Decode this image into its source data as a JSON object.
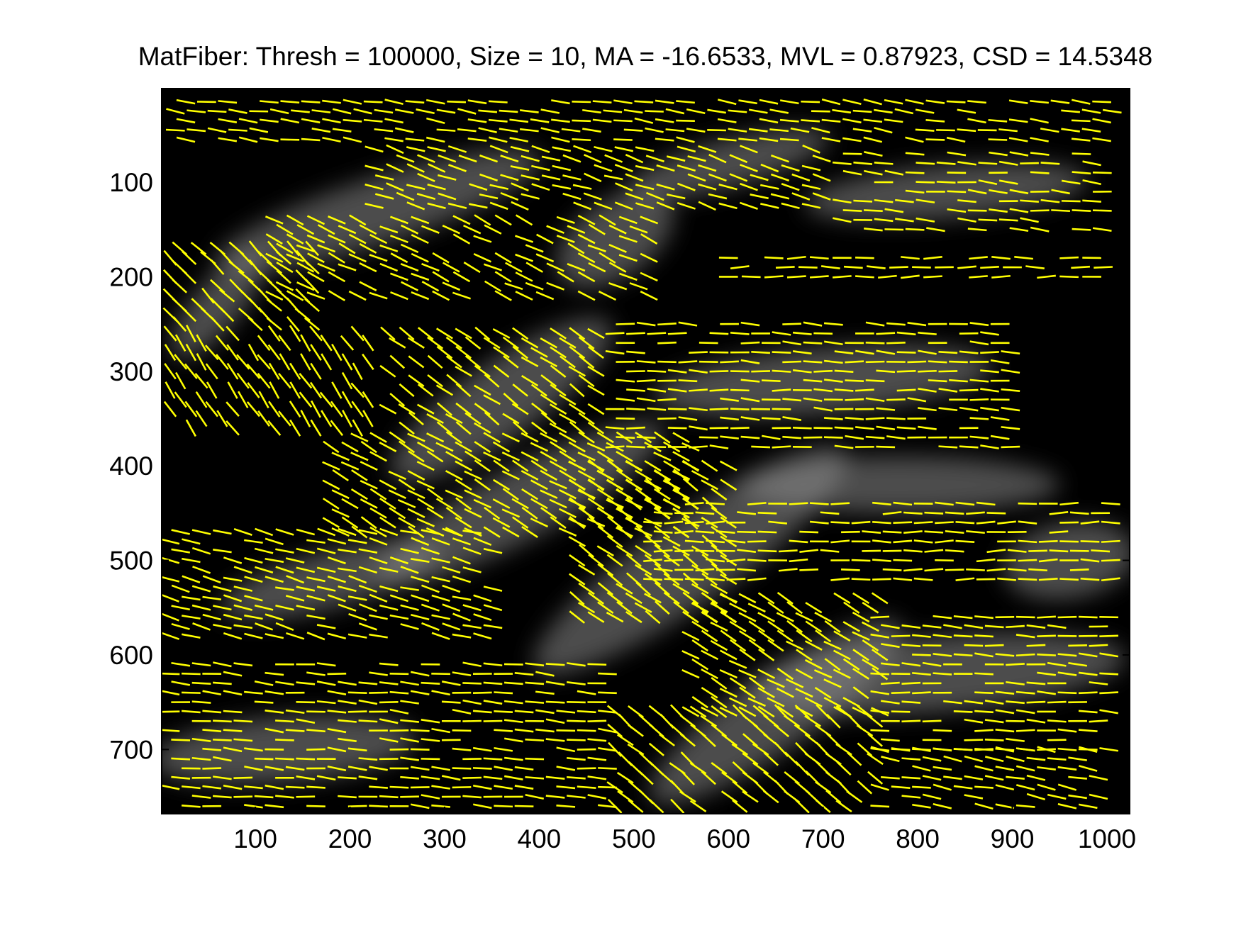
{
  "chart_data": {
    "type": "scatter",
    "variant": "orientation-vector-field-over-grayscale-image",
    "title": "MatFiber: Thresh = 100000, Size = 10, MA = -16.6533, MVL = 0.87923, CSD = 14.5348",
    "xlabel": "",
    "ylabel": "",
    "xlim": [
      1,
      1024
    ],
    "ylim": [
      1,
      768
    ],
    "y_axis_reversed": true,
    "x_ticks": [
      100,
      200,
      300,
      400,
      500,
      600,
      700,
      800,
      900,
      1000
    ],
    "y_ticks": [
      100,
      200,
      300,
      400,
      500,
      600,
      700
    ],
    "x_tick_labels": [
      "100",
      "200",
      "300",
      "400",
      "500",
      "600",
      "700",
      "800",
      "900",
      "1000"
    ],
    "y_tick_labels": [
      "100",
      "200",
      "300",
      "400",
      "500",
      "600",
      "700"
    ],
    "grid": false,
    "legend": "none",
    "vector_color": "#ffff00",
    "background_color": "#000000",
    "vector_length": 20,
    "mean_angle_deg": -16.6533,
    "regions": [
      {
        "x": [
          10,
          1010
        ],
        "y": [
          15,
          60
        ],
        "angle": -8,
        "step": 22
      },
      {
        "x": [
          220,
          700
        ],
        "y": [
          65,
          130
        ],
        "angle": -18,
        "step": 22
      },
      {
        "x": [
          720,
          1000
        ],
        "y": [
          70,
          150
        ],
        "angle": -5,
        "step": 22
      },
      {
        "x": [
          10,
          160
        ],
        "y": [
          170,
          250
        ],
        "angle": -45,
        "step": 20
      },
      {
        "x": [
          120,
          520
        ],
        "y": [
          140,
          220
        ],
        "angle": -25,
        "step": 22
      },
      {
        "x": [
          600,
          1000
        ],
        "y": [
          180,
          200
        ],
        "angle": 0,
        "step": 24
      },
      {
        "x": [
          240,
          460
        ],
        "y": [
          260,
          360
        ],
        "angle": -35,
        "step": 20
      },
      {
        "x": [
          480,
          900
        ],
        "y": [
          250,
          380
        ],
        "angle": -3,
        "step": 22
      },
      {
        "x": [
          10,
          220
        ],
        "y": [
          260,
          360
        ],
        "angle": -55,
        "step": 22
      },
      {
        "x": [
          180,
          560
        ],
        "y": [
          370,
          470
        ],
        "angle": -30,
        "step": 20
      },
      {
        "x": [
          440,
          600
        ],
        "y": [
          400,
          560
        ],
        "angle": -35,
        "step": 20
      },
      {
        "x": [
          520,
          1010
        ],
        "y": [
          440,
          520
        ],
        "angle": 0,
        "step": 22
      },
      {
        "x": [
          10,
          360
        ],
        "y": [
          470,
          580
        ],
        "angle": -15,
        "step": 22
      },
      {
        "x": [
          560,
          760
        ],
        "y": [
          540,
          660
        ],
        "angle": -30,
        "step": 20
      },
      {
        "x": [
          760,
          1010
        ],
        "y": [
          560,
          700
        ],
        "angle": -3,
        "step": 22
      },
      {
        "x": [
          10,
          480
        ],
        "y": [
          610,
          760
        ],
        "angle": -5,
        "step": 22
      },
      {
        "x": [
          480,
          760
        ],
        "y": [
          660,
          760
        ],
        "angle": -40,
        "step": 22
      },
      {
        "x": [
          760,
          1000
        ],
        "y": [
          700,
          760
        ],
        "angle": -10,
        "step": 22
      }
    ],
    "bright_areas": [
      {
        "x": 230,
        "y": 130,
        "rx": 180,
        "ry": 35,
        "rot": -18
      },
      {
        "x": 600,
        "y": 80,
        "rx": 110,
        "ry": 25,
        "rot": -15
      },
      {
        "x": 830,
        "y": 110,
        "rx": 150,
        "ry": 28,
        "rot": -5
      },
      {
        "x": 480,
        "y": 160,
        "rx": 70,
        "ry": 40,
        "rot": -35
      },
      {
        "x": 60,
        "y": 230,
        "rx": 70,
        "ry": 25,
        "rot": -50
      },
      {
        "x": 360,
        "y": 330,
        "rx": 140,
        "ry": 40,
        "rot": -35
      },
      {
        "x": 700,
        "y": 310,
        "rx": 180,
        "ry": 35,
        "rot": -5
      },
      {
        "x": 380,
        "y": 440,
        "rx": 170,
        "ry": 38,
        "rot": -28
      },
      {
        "x": 560,
        "y": 500,
        "rx": 200,
        "ry": 45,
        "rot": -35
      },
      {
        "x": 780,
        "y": 420,
        "rx": 170,
        "ry": 30,
        "rot": 0
      },
      {
        "x": 820,
        "y": 620,
        "rx": 200,
        "ry": 40,
        "rot": -5
      },
      {
        "x": 130,
        "y": 700,
        "rx": 140,
        "ry": 35,
        "rot": -5
      },
      {
        "x": 650,
        "y": 660,
        "rx": 160,
        "ry": 40,
        "rot": -35
      },
      {
        "x": 180,
        "y": 520,
        "rx": 120,
        "ry": 30,
        "rot": -15
      },
      {
        "x": 960,
        "y": 500,
        "rx": 70,
        "ry": 40,
        "rot": -10
      }
    ]
  }
}
